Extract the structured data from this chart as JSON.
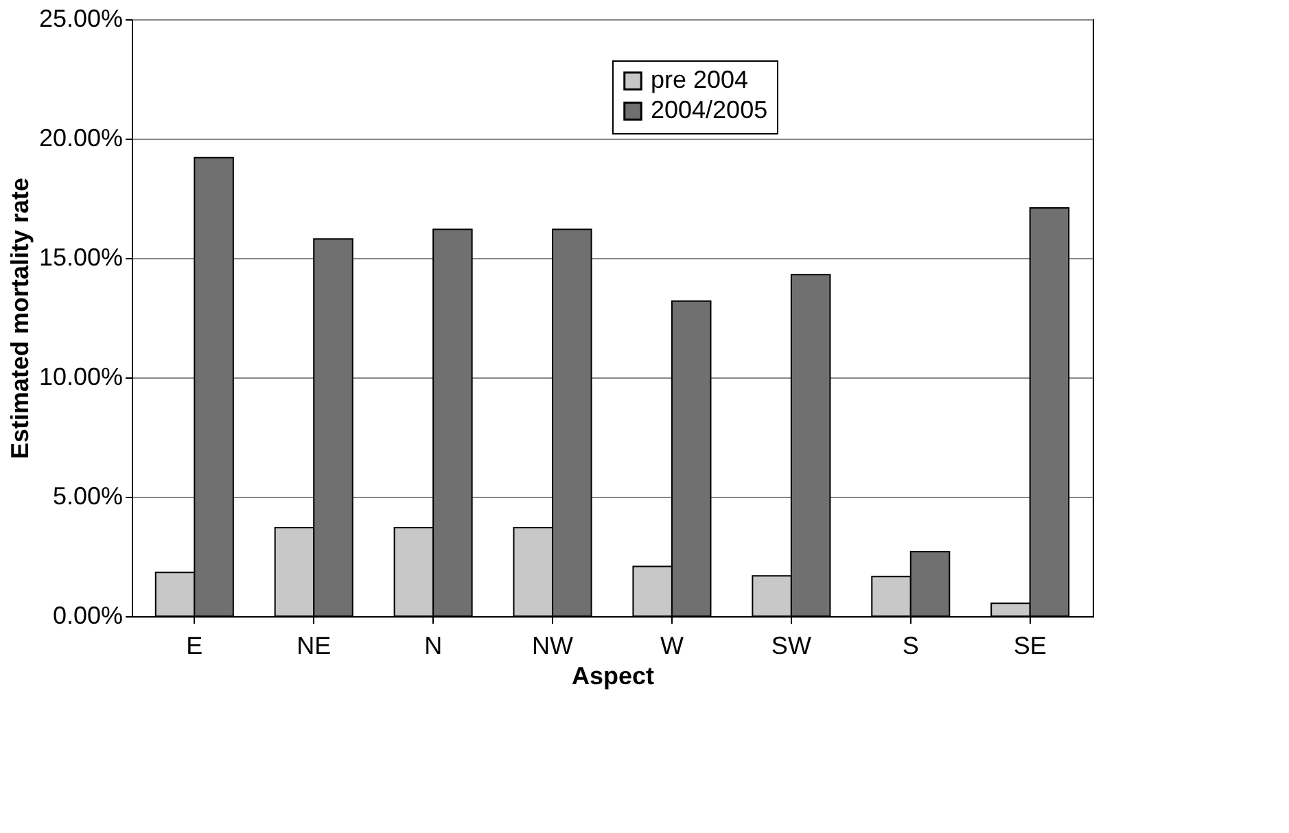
{
  "chart_data": {
    "type": "bar",
    "xlabel": "Aspect",
    "ylabel": "Estimated mortality rate",
    "categories": [
      "E",
      "NE",
      "N",
      "NW",
      "W",
      "SW",
      "S",
      "SE"
    ],
    "series": [
      {
        "name": "pre 2004",
        "color": "#c8c8c8",
        "values": [
          1.83,
          3.71,
          3.71,
          3.71,
          2.08,
          1.69,
          1.66,
          0.54
        ]
      },
      {
        "name": "2004/2005",
        "color": "#707070",
        "values": [
          19.2,
          15.8,
          16.2,
          16.2,
          13.2,
          14.3,
          2.7,
          17.1
        ]
      }
    ],
    "ylim": [
      0,
      25
    ],
    "yticks": [
      {
        "value": 0,
        "label": "0.00%"
      },
      {
        "value": 5,
        "label": "5.00%"
      },
      {
        "value": 10,
        "label": "10.00%"
      },
      {
        "value": 15,
        "label": "15.00%"
      },
      {
        "value": 20,
        "label": "20.00%"
      },
      {
        "value": 25,
        "label": "25.00%"
      }
    ],
    "grid": "y",
    "legend": "top"
  }
}
